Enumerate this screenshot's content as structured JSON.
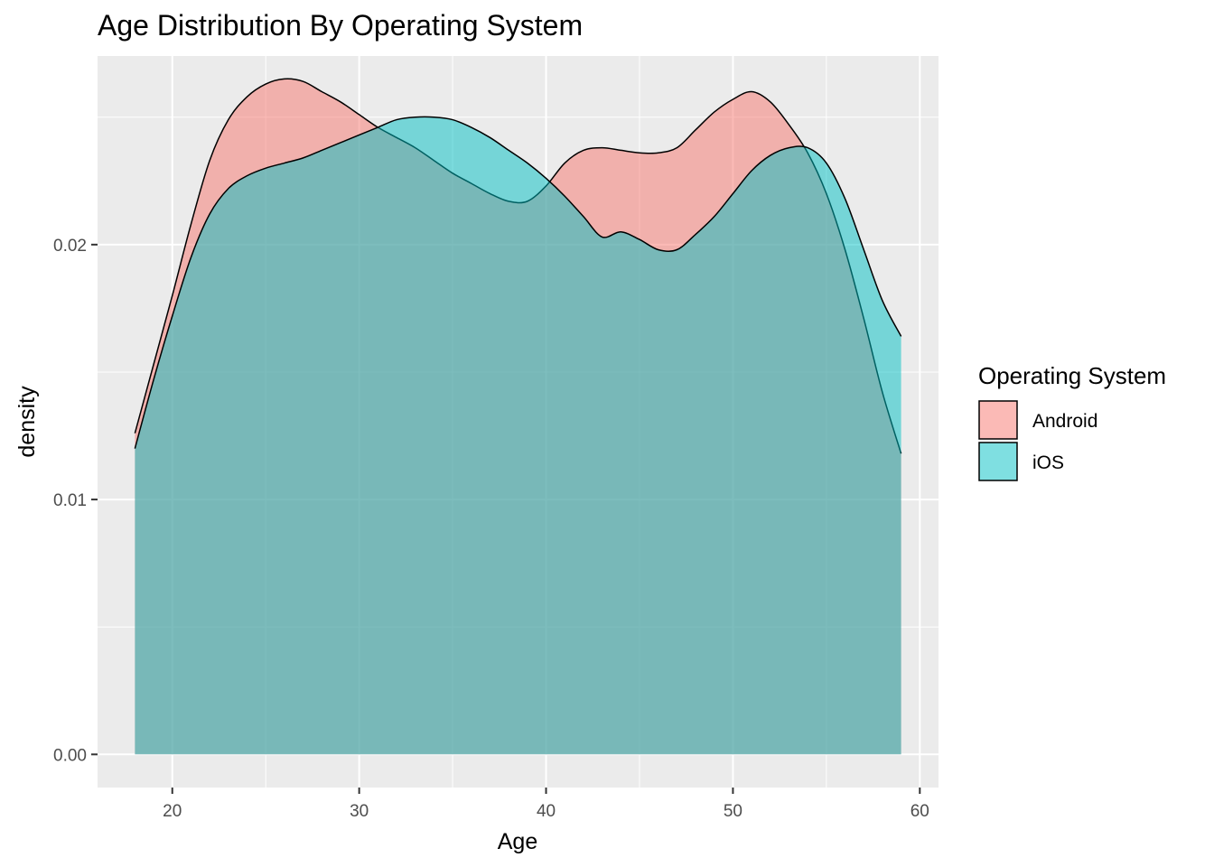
{
  "chart_data": {
    "type": "area",
    "title": "Age Distribution By Operating System",
    "xlabel": "Age",
    "ylabel": "density",
    "xlim": [
      16,
      61
    ],
    "ylim": [
      -0.0013,
      0.0274
    ],
    "x_ticks": [
      20,
      30,
      40,
      50,
      60
    ],
    "x_tick_labels": [
      "20",
      "30",
      "40",
      "50",
      "60"
    ],
    "y_ticks": [
      0.0,
      0.01,
      0.02
    ],
    "y_tick_labels": [
      "0.00",
      "0.01",
      "0.02"
    ],
    "grid": true,
    "legend": {
      "title": "Operating System",
      "position": "right"
    },
    "series": [
      {
        "name": "Android",
        "color": "#F8766D",
        "x": [
          18,
          19,
          20,
          21,
          22,
          23,
          24,
          25,
          26,
          27,
          28,
          29,
          30,
          31,
          32,
          33,
          34,
          35,
          36,
          37,
          38,
          39,
          40,
          41,
          42,
          43,
          44,
          45,
          46,
          47,
          48,
          49,
          50,
          51,
          52,
          53,
          54,
          55,
          56,
          57,
          58,
          59
        ],
        "y": [
          0.0126,
          0.0153,
          0.018,
          0.0208,
          0.0233,
          0.0249,
          0.0258,
          0.0263,
          0.0265,
          0.0264,
          0.026,
          0.0256,
          0.0251,
          0.0246,
          0.0242,
          0.0238,
          0.0233,
          0.0228,
          0.0224,
          0.022,
          0.0217,
          0.0217,
          0.0223,
          0.0232,
          0.0237,
          0.0238,
          0.0237,
          0.0236,
          0.0236,
          0.0238,
          0.0245,
          0.0252,
          0.0257,
          0.026,
          0.0256,
          0.0247,
          0.0236,
          0.022,
          0.0198,
          0.0171,
          0.0142,
          0.0118
        ]
      },
      {
        "name": "iOS",
        "color": "#00BFC4",
        "x": [
          18,
          19,
          20,
          21,
          22,
          23,
          24,
          25,
          26,
          27,
          28,
          29,
          30,
          31,
          32,
          33,
          34,
          35,
          36,
          37,
          38,
          39,
          40,
          41,
          42,
          43,
          44,
          45,
          46,
          47,
          48,
          49,
          50,
          51,
          52,
          53,
          54,
          55,
          56,
          57,
          58,
          59
        ],
        "y": [
          0.012,
          0.0147,
          0.0172,
          0.0195,
          0.0212,
          0.0222,
          0.0227,
          0.023,
          0.0232,
          0.0234,
          0.0237,
          0.024,
          0.0243,
          0.0246,
          0.0249,
          0.025,
          0.025,
          0.0249,
          0.0246,
          0.0242,
          0.0237,
          0.0232,
          0.0226,
          0.0219,
          0.0211,
          0.0203,
          0.0205,
          0.0202,
          0.0198,
          0.0198,
          0.0204,
          0.0211,
          0.022,
          0.0229,
          0.0235,
          0.0238,
          0.0238,
          0.0232,
          0.0218,
          0.0198,
          0.0178,
          0.0164
        ]
      }
    ]
  }
}
